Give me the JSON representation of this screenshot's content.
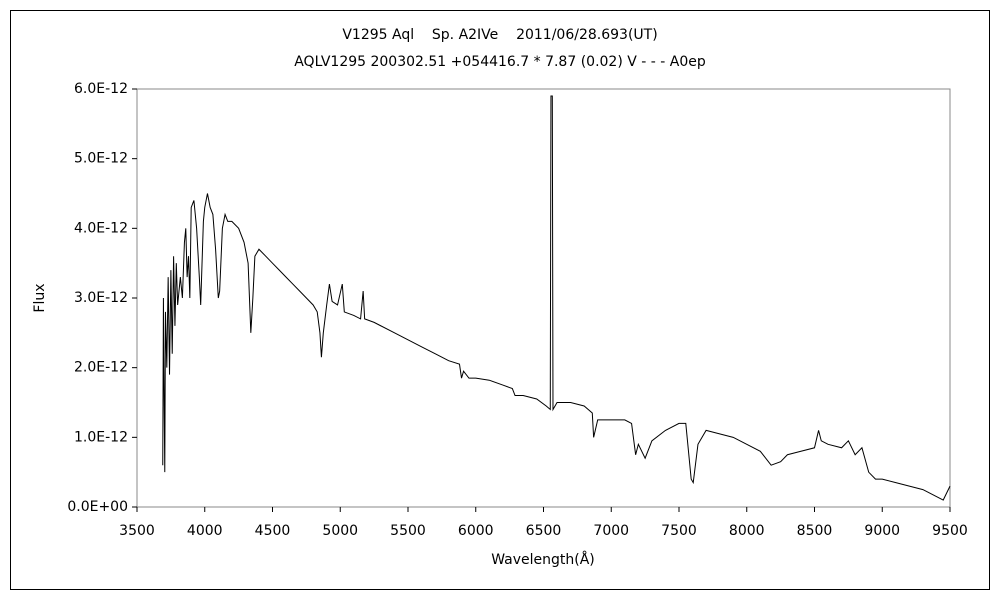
{
  "chart_data": {
    "type": "line",
    "title": "V1295 Aql    Sp. A2IVe    2011/06/28.693(UT)",
    "subtitle": "AQLV1295 200302.51 +054416.7 * 7.87 (0.02) V - - - A0ep",
    "x_label": "Wavelength(Å)",
    "y_label": "Flux",
    "xlim": [
      3500,
      9500
    ],
    "xticks": [
      3500,
      4000,
      4500,
      5000,
      5500,
      6000,
      6500,
      7000,
      7500,
      8000,
      8500,
      9000,
      9500
    ],
    "ylim": [
      0,
      6e-12
    ],
    "yticks": [
      {
        "value": 0,
        "label": "0.0E+00"
      },
      {
        "value": 1e-12,
        "label": "1.0E-12"
      },
      {
        "value": 2e-12,
        "label": "2.0E-12"
      },
      {
        "value": 3e-12,
        "label": "3.0E-12"
      },
      {
        "value": 4e-12,
        "label": "4.0E-12"
      },
      {
        "value": 5e-12,
        "label": "5.0E-12"
      },
      {
        "value": 6e-12,
        "label": "6.0E-12"
      }
    ],
    "grid": false,
    "series": [
      {
        "color": "#000000",
        "x": [
          3690,
          3695,
          3700,
          3705,
          3710,
          3720,
          3730,
          3740,
          3750,
          3760,
          3770,
          3780,
          3790,
          3800,
          3820,
          3835,
          3850,
          3860,
          3870,
          3880,
          3890,
          3900,
          3920,
          3940,
          3960,
          3970,
          3990,
          4000,
          4020,
          4040,
          4060,
          4080,
          4100,
          4110,
          4130,
          4150,
          4170,
          4200,
          4250,
          4290,
          4320,
          4340,
          4355,
          4370,
          4400,
          4450,
          4500,
          4550,
          4600,
          4650,
          4700,
          4750,
          4800,
          4830,
          4850,
          4861,
          4875,
          4900,
          4920,
          4940,
          4980,
          5015,
          5030,
          5100,
          5150,
          5169,
          5180,
          5250,
          5300,
          5400,
          5500,
          5600,
          5700,
          5800,
          5880,
          5895,
          5910,
          5950,
          6000,
          6100,
          6200,
          6270,
          6290,
          6350,
          6450,
          6520,
          6550,
          6555,
          6565,
          6570,
          6600,
          6700,
          6800,
          6860,
          6870,
          6900,
          7000,
          7100,
          7150,
          7180,
          7200,
          7250,
          7300,
          7400,
          7500,
          7550,
          7590,
          7605,
          7640,
          7700,
          7800,
          7900,
          8000,
          8100,
          8180,
          8250,
          8300,
          8400,
          8500,
          8530,
          8550,
          8600,
          8700,
          8750,
          8800,
          8850,
          8900,
          8950,
          9000,
          9100,
          9200,
          9300,
          9400,
          9450,
          9500
        ],
        "values": [
          6e-13,
          3e-12,
          1.6e-12,
          5e-13,
          2.8e-12,
          2e-12,
          3.3e-12,
          1.9e-12,
          3.4e-12,
          2.2e-12,
          3.6e-12,
          2.6e-12,
          3.5e-12,
          2.9e-12,
          3.3e-12,
          3e-12,
          3.8e-12,
          4e-12,
          3.3e-12,
          3.6e-12,
          3e-12,
          4.3e-12,
          4.4e-12,
          4e-12,
          3.3e-12,
          2.9e-12,
          4.1e-12,
          4.3e-12,
          4.5e-12,
          4.3e-12,
          4.2e-12,
          3.7e-12,
          3e-12,
          3.1e-12,
          4e-12,
          4.2e-12,
          4.1e-12,
          4.1e-12,
          4e-12,
          3.8e-12,
          3.5e-12,
          2.5e-12,
          3e-12,
          3.6e-12,
          3.7e-12,
          3.6e-12,
          3.5e-12,
          3.4e-12,
          3.3e-12,
          3.2e-12,
          3.1e-12,
          3e-12,
          2.9e-12,
          2.8e-12,
          2.5e-12,
          2.15e-12,
          2.5e-12,
          2.9e-12,
          3.2e-12,
          2.95e-12,
          2.9e-12,
          3.2e-12,
          2.8e-12,
          2.75e-12,
          2.7e-12,
          3.1e-12,
          2.7e-12,
          2.65e-12,
          2.6e-12,
          2.5e-12,
          2.4e-12,
          2.3e-12,
          2.2e-12,
          2.1e-12,
          2.05e-12,
          1.85e-12,
          1.95e-12,
          1.85e-12,
          1.85e-12,
          1.82e-12,
          1.75e-12,
          1.7e-12,
          1.6e-12,
          1.6e-12,
          1.55e-12,
          1.45e-12,
          1.4e-12,
          5.9e-12,
          5.9e-12,
          1.4e-12,
          1.5e-12,
          1.5e-12,
          1.45e-12,
          1.35e-12,
          1e-12,
          1.25e-12,
          1.25e-12,
          1.25e-12,
          1.2e-12,
          7.5e-13,
          9e-13,
          7e-13,
          9.5e-13,
          1.1e-12,
          1.2e-12,
          1.2e-12,
          4e-13,
          3.5e-13,
          9e-13,
          1.1e-12,
          1.05e-12,
          1e-12,
          9e-13,
          8e-13,
          6e-13,
          6.5e-13,
          7.5e-13,
          8e-13,
          8.5e-13,
          1.1e-12,
          9.5e-13,
          9e-13,
          8.5e-13,
          9.5e-13,
          7.5e-13,
          8.5e-13,
          5e-13,
          4e-13,
          4e-13,
          3.5e-13,
          3e-13,
          2.5e-13,
          1.5e-13,
          1e-13,
          3e-13
        ]
      }
    ]
  }
}
